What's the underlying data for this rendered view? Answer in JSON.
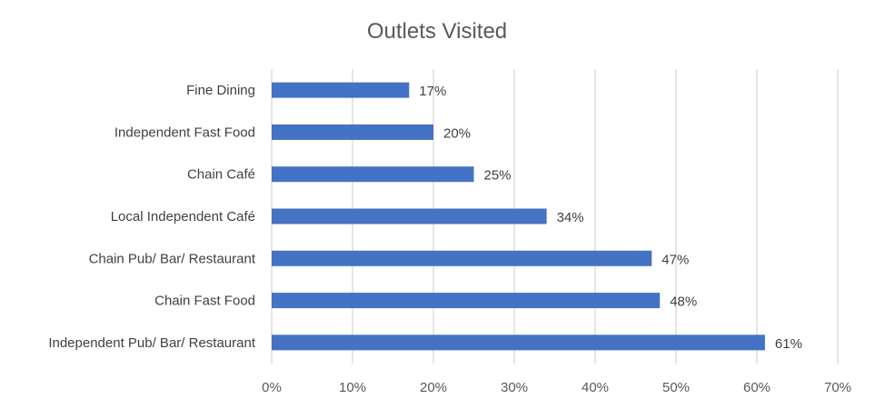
{
  "chart_data": {
    "type": "bar",
    "orientation": "horizontal",
    "title": "Outlets Visited",
    "categories": [
      "Fine Dining",
      "Independent Fast Food",
      "Chain Café",
      "Local Independent Café",
      "Chain Pub/ Bar/ Restaurant",
      "Chain Fast Food",
      "Independent Pub/ Bar/ Restaurant"
    ],
    "values": [
      17,
      20,
      25,
      34,
      47,
      48,
      61
    ],
    "data_labels": [
      "17%",
      "20%",
      "25%",
      "34%",
      "47%",
      "48%",
      "61%"
    ],
    "xlim": [
      0,
      70
    ],
    "x_ticks": [
      0,
      10,
      20,
      30,
      40,
      50,
      60,
      70
    ],
    "x_tick_labels": [
      "0%",
      "10%",
      "20%",
      "30%",
      "40%",
      "50%",
      "60%",
      "70%"
    ],
    "xlabel": "",
    "ylabel": "",
    "grid": true,
    "legend": "none",
    "bar_color": "#4472C4"
  }
}
